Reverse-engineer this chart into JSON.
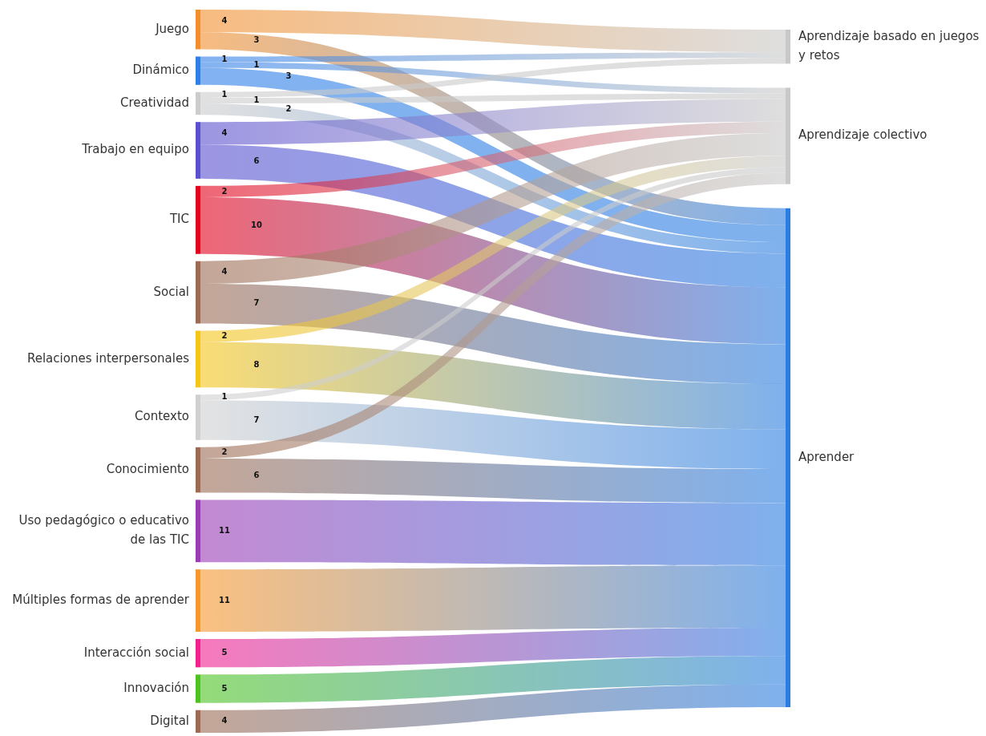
{
  "chart_data": {
    "type": "other",
    "data_labels": true,
    "categories": [
      "Juego",
      "Dinámico",
      "Creatividad",
      "Trabajo en equipo",
      "TIC",
      "Social",
      "Relaciones interpersonales",
      "Contexto",
      "Conocimiento",
      "Uso pedagógico o educativo de las TIC",
      "Múltiples formas de aprender",
      "Interacción social",
      "Innovación",
      "Digital"
    ],
    "colors": [
      "#f28e2b",
      "#2f7fe8",
      "#cccccc",
      "#5a4fcf",
      "#e3001b",
      "#9c6b52",
      "#f5c518",
      "#d0d0d0",
      "#9c6b52",
      "#9b3bb5",
      "#f7962b",
      "#f0208f",
      "#4cc320",
      "#9c6b52"
    ],
    "series": [
      {
        "name": "Aprendizaje basado en juegos y retos",
        "color": "#c8c8c8",
        "values": [
          4,
          1,
          1,
          null,
          null,
          null,
          null,
          null,
          null,
          null,
          null,
          null,
          null,
          null
        ]
      },
      {
        "name": "Aprendizaje colectivo",
        "color": "#c8c8c8",
        "values": [
          null,
          1,
          1,
          4,
          2,
          4,
          2,
          1,
          2,
          null,
          null,
          null,
          null,
          null
        ]
      },
      {
        "name": "Aprender",
        "color": "#2a7de1",
        "values": [
          3,
          3,
          2,
          6,
          10,
          7,
          8,
          7,
          6,
          11,
          11,
          5,
          5,
          4
        ]
      }
    ]
  }
}
